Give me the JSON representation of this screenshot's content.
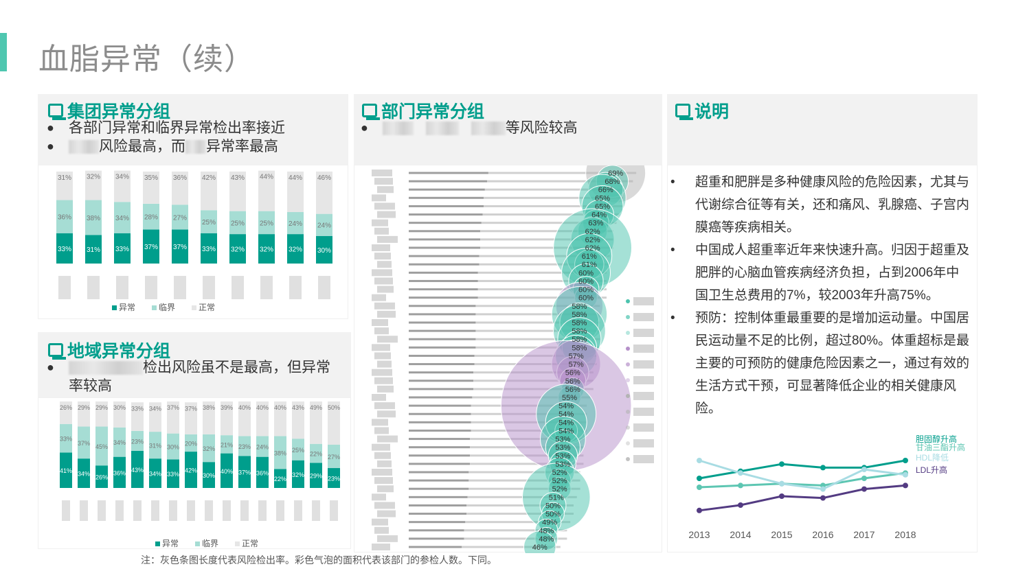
{
  "page": {
    "title": "血脂异常（续）",
    "note": "注：灰色条图长度代表风险检出率。彩色气泡的面积代表该部门的参检人数。下同。"
  },
  "group_panel": {
    "heading": "集团异常分组",
    "bullets": [
      {
        "blur_before": true,
        "text": "各部门异常和临界异常检出率接近",
        "text2": ""
      },
      {
        "blur_before": true,
        "text": "风险最高，而",
        "text2": "异常率最高"
      }
    ]
  },
  "region_panel": {
    "heading": "地域异常分组",
    "bullets": [
      {
        "text": "检出风险虽不是最高，但异常",
        "text2": "率较高"
      }
    ]
  },
  "dept_panel": {
    "heading": "部门异常分组",
    "bullets": [
      {
        "text": "等风险较高"
      }
    ]
  },
  "explain_panel": {
    "heading": "说明",
    "paragraphs": [
      "超重和肥胖是多种健康风险的危险因素，尤其与代谢综合征等有关，还和痛风、乳腺癌、子宫内膜癌等疾病相关。",
      "中国成人超重率近年来快速升高。归因于超重及肥胖的心脑血管疾病经济负担，占到2006年中国卫生总费用的7%，较2003年升高75%。",
      "预防：控制体重最重要的是增加运动量。中国居民运动量不足的比例，超过80%。体重超标是最主要的可预防的健康危险因素之一，通过有效的生活方式干预，可显著降低企业的相关健康风险。"
    ]
  },
  "legend": {
    "abnormal": "异常",
    "critical": "临界",
    "normal": "正常"
  },
  "colors": {
    "abnormal": "#009e8c",
    "critical": "#a6ddd4",
    "normal": "#e6e6e6",
    "teal": "#4cc3ae",
    "purple": "#b590c9",
    "grey": "#b3b3b3",
    "title_accent": "#4fc7b0"
  },
  "chart_data": [
    {
      "type": "bar",
      "stacked": true,
      "name": "group",
      "series": [
        {
          "name": "异常",
          "values": [
            33,
            31,
            33,
            37,
            37,
            33,
            32,
            32,
            32,
            30
          ]
        },
        {
          "name": "临界",
          "values": [
            36,
            38,
            34,
            28,
            27,
            25,
            25,
            25,
            24,
            24
          ]
        },
        {
          "name": "正常",
          "values": [
            31,
            32,
            34,
            35,
            36,
            42,
            43,
            44,
            44,
            46
          ]
        }
      ],
      "labels": {
        "abnormal": [
          "33%",
          "31%",
          "33%",
          "37%",
          "37%",
          "33%",
          "32%",
          "32%",
          "32%",
          "30%"
        ],
        "critical": [
          "36%",
          "38%",
          "34%",
          "28%",
          "27%",
          "25%",
          "25%",
          "25%",
          "24%",
          "24%"
        ],
        "normal": [
          "31%",
          "32%",
          "34%",
          "35%",
          "36%",
          "42%",
          "43%",
          "44%",
          "44%",
          "46%"
        ]
      },
      "legend": "bottom"
    },
    {
      "type": "bar",
      "stacked": true,
      "name": "region",
      "series": [
        {
          "name": "异常",
          "values": [
            41,
            34,
            26,
            36,
            43,
            34,
            33,
            42,
            30,
            40,
            37,
            36,
            22,
            32,
            29,
            23
          ]
        },
        {
          "name": "临界",
          "values": [
            33,
            37,
            45,
            34,
            23,
            31,
            30,
            20,
            32,
            21,
            23,
            24,
            38,
            25,
            22,
            27
          ]
        },
        {
          "name": "正常",
          "values": [
            26,
            29,
            29,
            30,
            33,
            34,
            37,
            37,
            38,
            39,
            40,
            40,
            40,
            43,
            49,
            50
          ]
        }
      ],
      "labels": {
        "abnormal": [
          "41%",
          "34%",
          "26%",
          "36%",
          "43%",
          "34%",
          "33%",
          "42%",
          "30%",
          "40%",
          "37%",
          "36%",
          "22%",
          "32%",
          "29%",
          "23%"
        ],
        "critical": [
          "33%",
          "37%",
          "45%",
          "34%",
          "23%",
          "31%",
          "30%",
          "20%",
          "32%",
          "21%",
          "23%",
          "24%",
          "38%",
          "25%",
          "22%",
          "27%"
        ],
        "normal": [
          "26%",
          "29%",
          "29%",
          "30%",
          "33%",
          "34%",
          "37%",
          "37%",
          "38%",
          "39%",
          "40%",
          "40%",
          "40%",
          "43%",
          "49%",
          "50%"
        ]
      },
      "legend": "bottom"
    },
    {
      "type": "bar",
      "orientation": "horizontal",
      "name": "department",
      "values": [
        69,
        68,
        66,
        65,
        65,
        64,
        63,
        62,
        62,
        62,
        61,
        61,
        60,
        60,
        60,
        60,
        58,
        58,
        58,
        58,
        58,
        58,
        57,
        57,
        56,
        56,
        56,
        55,
        54,
        54,
        54,
        54,
        53,
        53,
        53,
        53,
        52,
        52,
        52,
        51,
        50,
        50,
        49,
        48,
        48,
        46
      ],
      "labels": [
        "69%",
        "68%",
        "66%",
        "65%",
        "65%",
        "64%",
        "63%",
        "62%",
        "62%",
        "62%",
        "61%",
        "61%",
        "60%",
        "60%",
        "60%",
        "60%",
        "58%",
        "58%",
        "58%",
        "58%",
        "58%",
        "58%",
        "57%",
        "57%",
        "56%",
        "56%",
        "56%",
        "55%",
        "54%",
        "54%",
        "54%",
        "54%",
        "53%",
        "53%",
        "53%",
        "53%",
        "52%",
        "52%",
        "52%",
        "51%",
        "50%",
        "50%",
        "49%",
        "48%",
        "48%",
        "46%"
      ],
      "bubble_colors": [
        "grey",
        "teal",
        "teal",
        "teal",
        "teal",
        "teal",
        "teal",
        "teal",
        "teal",
        "teal",
        "teal",
        "teal",
        "teal",
        "teal",
        "teal",
        "teal",
        "purple",
        "teal",
        "teal",
        "teal",
        "teal",
        "teal",
        "teal",
        "purple",
        "purple",
        "purple",
        "teal",
        "teal",
        "purple",
        "teal",
        "teal",
        "teal",
        "teal",
        "teal",
        "teal",
        "teal",
        "teal",
        "teal",
        "teal",
        "teal",
        "teal",
        "teal",
        "teal",
        "teal",
        "teal",
        "teal"
      ],
      "bubble_sizes": [
        2.1,
        0.6,
        0.7,
        1.3,
        1.0,
        0.5,
        0.4,
        0.5,
        1.1,
        3.6,
        1.2,
        0.5,
        1.4,
        0.7,
        0.4,
        0.3,
        1.3,
        1.8,
        0.9,
        1.6,
        1.1,
        0.7,
        1.0,
        1.4,
        0.6,
        0.4,
        0.3,
        0.3,
        10.0,
        2.1,
        1.0,
        0.3,
        1.2,
        0.7,
        0.5,
        0.4,
        0.5,
        0.3,
        0.3,
        2.7,
        0.4,
        0.3,
        0.3,
        0.3,
        0.3,
        0.6
      ]
    },
    {
      "type": "line",
      "name": "trend",
      "x": [
        "2013",
        "2014",
        "2015",
        "2016",
        "2017",
        "2018"
      ],
      "series": [
        {
          "name": "胆固醇升高",
          "values": [
            30,
            34,
            38,
            36,
            36,
            40
          ]
        },
        {
          "name": "甘油三酯升高",
          "values": [
            25,
            26,
            27,
            26,
            30,
            33
          ]
        },
        {
          "name": "HDL降低",
          "values": [
            40,
            33,
            27,
            24,
            35,
            32
          ]
        },
        {
          "name": "LDL升高",
          "values": [
            12,
            15,
            20,
            19,
            24,
            26
          ]
        }
      ],
      "series_colors": [
        "#009e8c",
        "#5dc6b2",
        "#a8dce3",
        "#533b82"
      ],
      "legend": "right"
    }
  ]
}
